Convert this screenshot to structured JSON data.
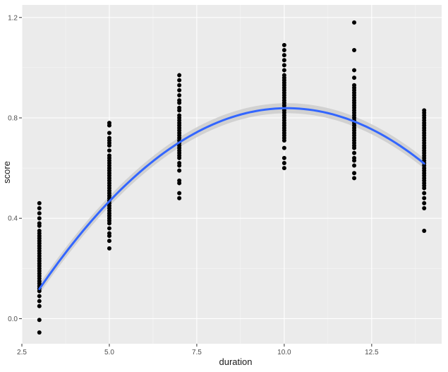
{
  "chart_data": {
    "type": "scatter",
    "title": "",
    "xlabel": "duration",
    "ylabel": "score",
    "xlim": [
      2.5,
      14.5
    ],
    "ylim": [
      -0.1,
      1.25
    ],
    "x_ticks": [
      2.5,
      5.0,
      7.5,
      10.0,
      12.5
    ],
    "x_tick_labels": [
      "2.5",
      "5.0",
      "7.5",
      "10.0",
      "12.5"
    ],
    "y_ticks": [
      0.0,
      0.4,
      0.8,
      1.2
    ],
    "y_tick_labels": [
      "0.0",
      "0.4",
      "0.8",
      "1.2"
    ],
    "grid": true,
    "legend": "none",
    "colors": {
      "panel_bg": "#ebebeb",
      "grid_major": "#ffffff",
      "points": "#000000",
      "fit_line": "#3366ff",
      "confidence_band": "#cccccc"
    },
    "series": [
      {
        "type": "scatter",
        "groups": [
          {
            "x": 3,
            "y": [
              -0.055,
              -0.005,
              0.05,
              0.07,
              0.09,
              0.11,
              0.12,
              0.13,
              0.14,
              0.15,
              0.16,
              0.17,
              0.18,
              0.19,
              0.2,
              0.21,
              0.22,
              0.23,
              0.24,
              0.25,
              0.26,
              0.27,
              0.28,
              0.29,
              0.3,
              0.31,
              0.32,
              0.33,
              0.34,
              0.35,
              0.37,
              0.38,
              0.4,
              0.42,
              0.44,
              0.46
            ]
          },
          {
            "x": 5,
            "y": [
              0.28,
              0.31,
              0.33,
              0.34,
              0.36,
              0.38,
              0.39,
              0.4,
              0.41,
              0.42,
              0.43,
              0.44,
              0.45,
              0.46,
              0.47,
              0.48,
              0.49,
              0.5,
              0.51,
              0.52,
              0.53,
              0.54,
              0.55,
              0.56,
              0.57,
              0.58,
              0.59,
              0.6,
              0.61,
              0.62,
              0.63,
              0.64,
              0.65,
              0.67,
              0.69,
              0.7,
              0.71,
              0.72,
              0.74,
              0.77,
              0.78
            ]
          },
          {
            "x": 7,
            "y": [
              0.48,
              0.5,
              0.54,
              0.55,
              0.59,
              0.61,
              0.62,
              0.64,
              0.65,
              0.66,
              0.67,
              0.68,
              0.69,
              0.7,
              0.71,
              0.72,
              0.73,
              0.74,
              0.75,
              0.76,
              0.77,
              0.78,
              0.79,
              0.8,
              0.81,
              0.83,
              0.84,
              0.86,
              0.87,
              0.89,
              0.91,
              0.93,
              0.95,
              0.97
            ]
          },
          {
            "x": 10,
            "y": [
              0.6,
              0.62,
              0.64,
              0.68,
              0.71,
              0.72,
              0.73,
              0.74,
              0.75,
              0.76,
              0.77,
              0.78,
              0.79,
              0.8,
              0.81,
              0.82,
              0.83,
              0.84,
              0.85,
              0.86,
              0.87,
              0.88,
              0.89,
              0.9,
              0.91,
              0.92,
              0.93,
              0.94,
              0.95,
              0.96,
              0.97,
              0.99,
              1.01,
              1.03,
              1.05,
              1.07,
              1.09
            ]
          },
          {
            "x": 12,
            "y": [
              0.56,
              0.58,
              0.61,
              0.63,
              0.64,
              0.66,
              0.68,
              0.69,
              0.7,
              0.71,
              0.72,
              0.73,
              0.74,
              0.75,
              0.76,
              0.77,
              0.78,
              0.79,
              0.8,
              0.81,
              0.82,
              0.83,
              0.84,
              0.85,
              0.86,
              0.87,
              0.88,
              0.89,
              0.9,
              0.91,
              0.92,
              0.93,
              0.96,
              0.99,
              1.07,
              1.18
            ]
          },
          {
            "x": 14,
            "y": [
              0.35,
              0.44,
              0.46,
              0.48,
              0.5,
              0.52,
              0.53,
              0.54,
              0.55,
              0.56,
              0.57,
              0.58,
              0.59,
              0.6,
              0.61,
              0.62,
              0.63,
              0.64,
              0.65,
              0.66,
              0.67,
              0.68,
              0.69,
              0.7,
              0.71,
              0.72,
              0.73,
              0.74,
              0.75,
              0.76,
              0.77,
              0.78,
              0.79,
              0.8,
              0.81,
              0.82,
              0.83
            ]
          }
        ]
      },
      {
        "type": "line",
        "smooth": "quadratic",
        "x_range": [
          3,
          14
        ],
        "coefficients": [
          -0.6213,
          0.2896,
          -0.014362
        ],
        "ci_halfwidth": 0.02
      }
    ]
  }
}
